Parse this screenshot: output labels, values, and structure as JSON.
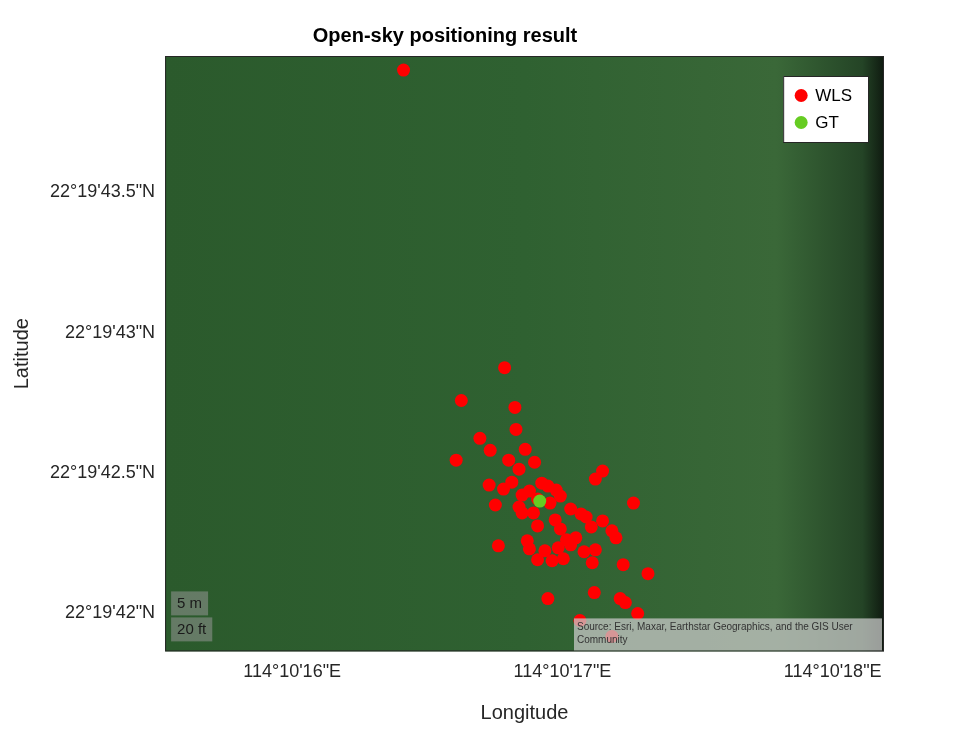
{
  "chart_data": {
    "type": "scatter",
    "title": "Open-sky positioning result",
    "x_label": "Longitude",
    "y_label": "Latitude",
    "xlim": [
      114.1709805,
      114.1717195
    ],
    "ylim": [
      22.3282958,
      22.328885
    ],
    "xticks": [
      {
        "value": 114.1711111,
        "label": "114°10'16\"E"
      },
      {
        "value": 114.1713889,
        "label": "114°10'17\"E"
      },
      {
        "value": 114.1716667,
        "label": "114°10'18\"E"
      }
    ],
    "yticks": [
      {
        "value": 22.3283333,
        "label": "22°19'42\"N"
      },
      {
        "value": 22.3284722,
        "label": "22°19'42.5\"N"
      },
      {
        "value": 22.3286111,
        "label": "22°19'43\"N"
      },
      {
        "value": 22.32875,
        "label": "22°19'43.5\"N"
      }
    ],
    "grid": false,
    "legend": "top right",
    "annotations": [
      "5 m",
      "20 ft",
      "Source: Esri, Maxar, Earthstar Geographics, and the GIS User Community"
    ],
    "series": [
      {
        "name": "WLS",
        "color": "#ff0000",
        "marker": "circle",
        "x": [
          114.1712256,
          114.1713295,
          114.171285,
          114.1713401,
          114.1713412,
          114.1713041,
          114.1713147,
          114.1713507,
          114.1712797,
          114.1713337,
          114.1713603,
          114.1713443,
          114.1714302,
          114.1714228,
          114.1713136,
          114.1713369,
          114.1713677,
          114.171374,
          114.1713284,
          114.171355,
          114.1713825,
          114.1713475,
          114.1713868,
          114.1713634,
          114.17132,
          114.1713443,
          114.1713762,
          114.171462,
          114.1713974,
          114.171408,
          114.1713592,
          114.1713475,
          114.1714133,
          114.1713815,
          114.1714302,
          114.1713634,
          114.1714186,
          114.1713868,
          114.1714398,
          114.171444,
          114.1714027,
          114.1713231,
          114.1713528,
          114.1713931,
          114.1713974,
          114.1713846,
          114.171355,
          114.1714228,
          114.1713709,
          114.1714111,
          114.1713899,
          114.1713634,
          114.1713783,
          114.1714196,
          114.1714514,
          114.1714769,
          114.1714217,
          114.1714483,
          114.1714536,
          114.171374,
          114.1714663,
          114.1714069,
          114.1714398
        ],
        "values": [
          22.3288711,
          22.3285766,
          22.3285441,
          22.3285372,
          22.3285155,
          22.3285067,
          22.3284948,
          22.3284958,
          22.328485,
          22.328485,
          22.328483,
          22.3284761,
          22.3284742,
          22.3284663,
          22.3284604,
          22.3284633,
          22.3284623,
          22.3284594,
          22.3284564,
          22.3284545,
          22.3284554,
          22.3284505,
          22.3284495,
          22.3284466,
          22.3284407,
          22.3284387,
          22.3284426,
          22.3284426,
          22.3284367,
          22.3284318,
          22.3284328,
          22.3284328,
          22.3284288,
          22.3284259,
          22.3284249,
          22.32842,
          22.328419,
          22.328417,
          22.3284151,
          22.3284082,
          22.3284082,
          22.3284003,
          22.3284052,
          22.3284062,
          22.3284013,
          22.3283983,
          22.3283973,
          22.3283963,
          22.3283954,
          22.3283944,
          22.3283875,
          22.3283865,
          22.3283855,
          22.3283835,
          22.3283816,
          22.3283727,
          22.328354,
          22.3283481,
          22.3283441,
          22.3283481,
          22.3283333,
          22.3283264,
          22.3283106
        ]
      },
      {
        "name": "GT",
        "color": "#66cc22",
        "marker": "circle",
        "x": [
          114.1713656
        ],
        "values": [
          22.3284446
        ]
      }
    ]
  }
}
